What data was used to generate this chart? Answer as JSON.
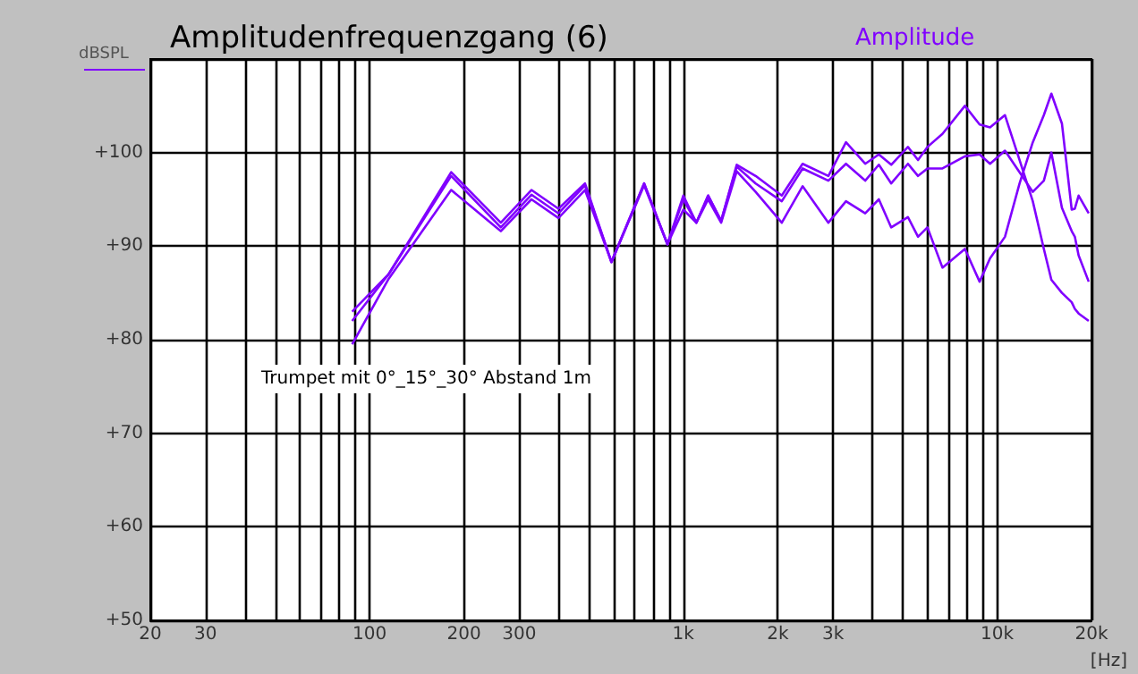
{
  "chart_data": {
    "type": "line",
    "title": "Amplitudenfrequenzgang (6)",
    "ylabel": "dBSPL",
    "xlabel": "[Hz]",
    "annotations": [
      "Trumpet mit 0°_15°_30° Abstand 1m",
      "Amplitude"
    ],
    "log": "x",
    "grid": true,
    "marker": "none",
    "line_style": "solid",
    "xlim": [
      20,
      20000
    ],
    "ylim": [
      50,
      110
    ],
    "xticks": [
      20,
      30,
      {
        "value": 40,
        "label": null
      },
      {
        "value": 50,
        "label": null
      },
      {
        "value": 60,
        "label": null
      },
      {
        "value": 70,
        "label": null
      },
      {
        "value": 80,
        "label": null
      },
      {
        "value": 90,
        "label": null
      },
      100,
      200,
      300,
      {
        "value": 400,
        "label": null
      },
      {
        "value": 500,
        "label": null
      },
      {
        "value": 600,
        "label": null
      },
      {
        "value": 700,
        "label": null
      },
      {
        "value": 800,
        "label": null
      },
      {
        "value": 900,
        "label": null
      },
      {
        "value": 1000,
        "label": "1k"
      },
      {
        "value": 2000,
        "label": "2k"
      },
      {
        "value": 3000,
        "label": "3k"
      },
      {
        "value": 4000,
        "label": null
      },
      {
        "value": 5000,
        "label": null
      },
      {
        "value": 6000,
        "label": null
      },
      {
        "value": 7000,
        "label": null
      },
      {
        "value": 8000,
        "label": null
      },
      {
        "value": 9000,
        "label": null
      },
      {
        "value": 10000,
        "label": "10k"
      },
      {
        "value": 20000,
        "label": "20k"
      }
    ],
    "yticks": [
      {
        "value": 50,
        "label": "+50"
      },
      {
        "value": 60,
        "label": "+60"
      },
      {
        "value": 70,
        "label": "+70"
      },
      {
        "value": 80,
        "label": "+80"
      },
      {
        "value": 90,
        "label": "+90"
      },
      {
        "value": 100,
        "label": "+100"
      },
      {
        "value": 110,
        "label": null
      }
    ],
    "x": [
      88,
      115,
      182,
      262,
      328,
      400,
      486,
      590,
      750,
      890,
      1000,
      1100,
      1200,
      1320,
      1480,
      1700,
      2060,
      2400,
      2900,
      3300,
      3800,
      4200,
      4600,
      5200,
      5600,
      6000,
      6700,
      7900,
      8800,
      9500,
      10600,
      11800,
      13000,
      14100,
      14900,
      16100,
      17300,
      17700,
      18200,
      19600
    ],
    "series": [
      {
        "color": "#8000ff",
        "values": [
          83,
          87,
          97.9,
          92.5,
          96,
          94,
          96.7,
          88.3,
          96.7,
          90.2,
          95.4,
          92.5,
          95.4,
          92.7,
          98.7,
          97.5,
          95.4,
          98.8,
          97.5,
          101.1,
          98.8,
          99.8,
          98.7,
          100.6,
          99.2,
          100.6,
          102,
          105,
          103,
          102.7,
          104,
          99.2,
          94.8,
          89.7,
          86.4,
          85,
          84,
          83.3,
          82.8,
          82
        ]
      },
      {
        "color": "#8000ff",
        "values": [
          82,
          87,
          97.5,
          92,
          95.5,
          93.5,
          96.5,
          88.3,
          96.7,
          90.2,
          95,
          92.5,
          95.4,
          92.7,
          98.5,
          96.7,
          94.8,
          98.3,
          97,
          98.8,
          97,
          98.7,
          96.7,
          98.8,
          97.5,
          98.3,
          98.3,
          99.6,
          99.8,
          98.8,
          100.2,
          97.9,
          95.8,
          97,
          100,
          94.1,
          91.6,
          91,
          89,
          86.2
        ]
      },
      {
        "color": "#8000ff",
        "values": [
          79.5,
          86.5,
          96,
          91.6,
          95,
          93,
          96,
          88.3,
          96.5,
          90.2,
          93.9,
          92.5,
          95,
          92.5,
          98,
          95.8,
          92.5,
          96.4,
          92.5,
          94.8,
          93.5,
          95,
          92,
          93.1,
          91,
          92,
          87.7,
          89.7,
          86.2,
          88.7,
          91,
          96.7,
          101.1,
          104,
          106.3,
          103.1,
          93.9,
          94,
          95.4,
          93.5
        ]
      }
    ]
  }
}
